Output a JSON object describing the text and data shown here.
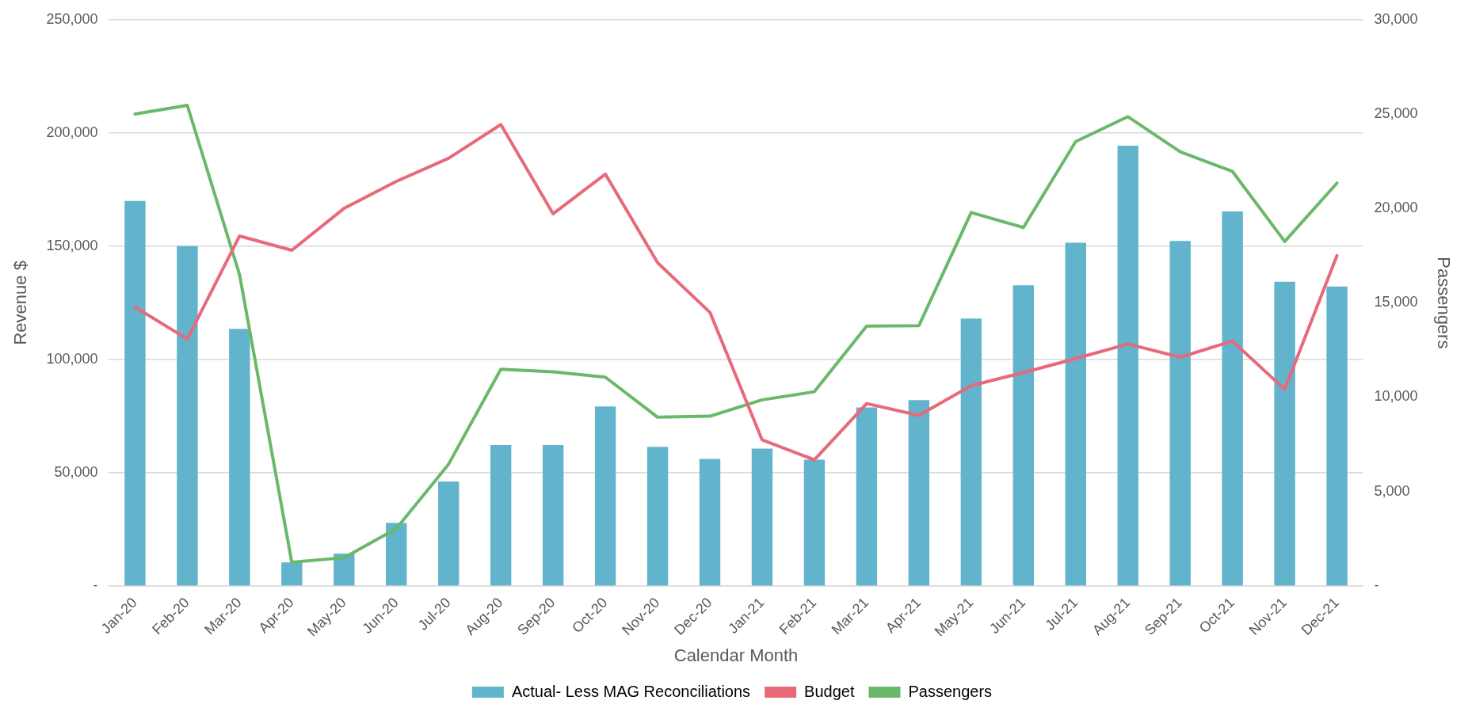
{
  "chart_data": {
    "type": "bar",
    "xlabel": "Calendar Month",
    "ylabel": "Revenue $",
    "y2label": "Passengers",
    "categories": [
      "Jan-20",
      "Feb-20",
      "Mar-20",
      "Apr-20",
      "May-20",
      "Jun-20",
      "Jul-20",
      "Aug-20",
      "Sep-20",
      "Oct-20",
      "Nov-20",
      "Dec-20",
      "Jan-21",
      "Feb-21",
      "Mar-21",
      "Apr-21",
      "May-21",
      "Jun-21",
      "Jul-21",
      "Aug-21",
      "Sep-21",
      "Oct-21",
      "Nov-21",
      "Dec-21"
    ],
    "series": [
      {
        "name": "Actual- Less MAG Reconciliations",
        "color": "#62b3cc",
        "values": [
          170000,
          150000,
          113500,
          10400,
          14300,
          27800,
          46100,
          62200,
          62200,
          79200,
          61400,
          56100,
          60600,
          55700,
          78800,
          82000,
          118000,
          132700,
          151500,
          194300,
          152300,
          165300,
          134300,
          132200
        ]
      },
      {
        "name": "Budget",
        "type": "line",
        "color": "#e8697a",
        "values": [
          123100,
          109000,
          154500,
          148200,
          166700,
          178600,
          188800,
          203700,
          164300,
          181800,
          142700,
          120800,
          64500,
          55700,
          80500,
          75300,
          88400,
          94200,
          100400,
          106800,
          101000,
          108100,
          86800,
          145800
        ]
      },
      {
        "name": "Passengers",
        "type": "line",
        "axis": "y2",
        "color": "#6ab96a",
        "values": [
          25000,
          25460,
          16490,
          1250,
          1500,
          3040,
          6450,
          11480,
          11340,
          11060,
          8940,
          8990,
          9860,
          10290,
          13770,
          13790,
          19780,
          18990,
          23540,
          24860,
          23000,
          21960,
          18250,
          21340
        ]
      }
    ],
    "ylim": [
      0,
      250000
    ],
    "yticks": [
      {
        "value": 0,
        "label": "-"
      },
      {
        "value": 50000,
        "label": "50,000"
      },
      {
        "value": 100000,
        "label": "100,000"
      },
      {
        "value": 150000,
        "label": "150,000"
      },
      {
        "value": 200000,
        "label": "200,000"
      },
      {
        "value": 250000,
        "label": "250,000"
      }
    ],
    "y2lim": [
      0,
      30000
    ],
    "y2ticks": [
      {
        "value": 0,
        "label": "-"
      },
      {
        "value": 5000,
        "label": "5,000"
      },
      {
        "value": 10000,
        "label": "10,000"
      },
      {
        "value": 15000,
        "label": "15,000"
      },
      {
        "value": 20000,
        "label": "20,000"
      },
      {
        "value": 25000,
        "label": "25,000"
      },
      {
        "value": 30000,
        "label": "30,000"
      }
    ],
    "grid": "y",
    "legend": "bottom",
    "marker": "none",
    "line_style": "solid"
  }
}
